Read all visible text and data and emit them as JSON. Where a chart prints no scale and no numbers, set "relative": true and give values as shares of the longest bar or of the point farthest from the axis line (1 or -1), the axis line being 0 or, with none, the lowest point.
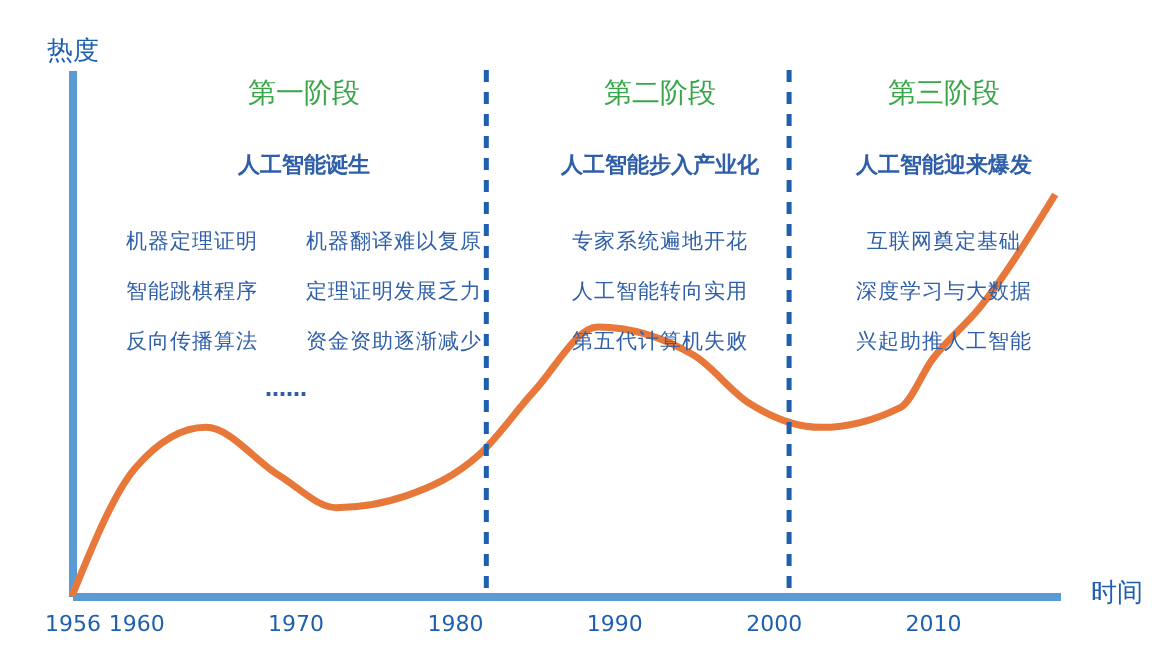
{
  "chart_data": {
    "type": "line",
    "relative": true,
    "xlabel": "时间",
    "ylabel": "热度",
    "x": [
      1956,
      1960,
      1964.4,
      1969,
      1972.6,
      1977,
      1981.5,
      1985,
      1989,
      1995,
      1998.5,
      2003,
      2008,
      2010,
      2013,
      2017.7
    ],
    "series": [
      {
        "color": "#e8773a",
        "values": [
          0,
          0.32,
          0.42,
          0.3,
          0.22,
          0.25,
          0.35,
          0.51,
          0.67,
          0.6,
          0.48,
          0.42,
          0.47,
          0.59,
          0.72,
          1
        ]
      }
    ],
    "xlim": [
      1956,
      2018
    ],
    "xticks": [
      1956,
      1960,
      1970,
      1980,
      1990,
      2000,
      2010
    ],
    "grid": false,
    "legend": false,
    "marker": "none",
    "line_style": "solid",
    "ref_lines": [
      {
        "axis": "x",
        "value": 1982,
        "color": "#1f5fb0",
        "line_style": "dashed"
      },
      {
        "axis": "x",
        "value": 2001,
        "color": "#1f5fb0",
        "line_style": "dashed"
      }
    ],
    "annotations": [
      "第一阶段",
      "第二阶段",
      "第三阶段",
      "人工智能诞生",
      "人工智能步入产业化",
      "人工智能迎来爆发",
      "机器定理证明",
      "智能跳棋程序",
      "反向传播算法",
      "机器翻译难以复原",
      "定理证明发展乏力",
      "资金资助逐渐减少",
      "……",
      "专家系统遍地开花",
      "人工智能转向实用",
      "第五代计算机失败",
      "互联网奠定基础",
      "深度学习与大数据",
      "兴起助推人工智能"
    ]
  }
}
